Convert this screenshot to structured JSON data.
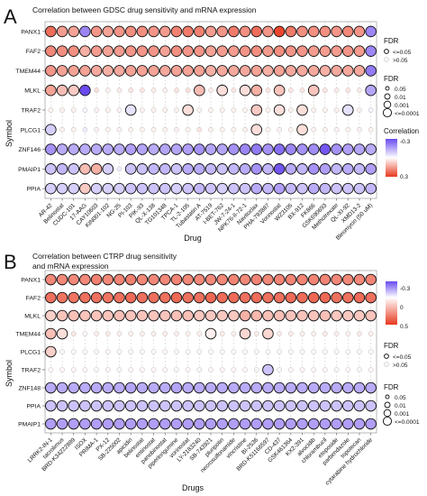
{
  "panels": [
    {
      "letter": "A",
      "title_lines": [
        "Correlation between GDSC drug sensitivity and mRNA expression"
      ]
    },
    {
      "letter": "B",
      "title_lines": [
        "Correlation between CTRP drug sensitivity",
        "and mRNA expression"
      ]
    }
  ],
  "chart_data": [
    {
      "type": "scatter",
      "title": "Correlation between GDSC drug sensitivity and mRNA expression",
      "xlabel": "Drug",
      "ylabel": "Symbol",
      "rows": [
        "PANX1",
        "FAF2",
        "TMEM44",
        "MLKL",
        "TRAF2",
        "PLCG1",
        "ZNF146",
        "PMAIP1",
        "PPIA"
      ],
      "x": [
        "AR-42",
        "Belinostat",
        "CUDC-101",
        "17-AAG",
        "CAY10603",
        "KIN001-102",
        "NG-25",
        "PI-103",
        "PIK-93",
        "QL-X-138",
        "TG101348",
        "TPCA-1",
        "TL-2-105",
        "Tubastatin A",
        "AT-7519",
        "I-BET-762",
        "JW-7-24-1",
        "NPK76-II-72-1",
        "Navitoclax",
        "PHA-793887",
        "Vorinostat",
        "WZ3105",
        "BX-912",
        "FK866",
        "GSK690693",
        "Methotrexate",
        "QL-XI-92",
        "XMD13-2",
        "Bleomycin (50 uM)"
      ],
      "z": [
        [
          0.22,
          0.15,
          0.14,
          -0.2,
          0.16,
          0.14,
          0.16,
          0.17,
          0.17,
          0.16,
          0.15,
          0.19,
          0.2,
          0.19,
          0.15,
          0.16,
          0.2,
          0.17,
          0.22,
          0.16,
          0.28,
          0.2,
          0.17,
          0.17,
          0.17,
          0.16,
          0.18,
          0.16,
          -0.2
        ],
        [
          0.18,
          0.17,
          0.17,
          0.12,
          0.15,
          0.14,
          0.15,
          0.16,
          0.16,
          0.16,
          0.14,
          0.17,
          0.16,
          0.16,
          0.14,
          0.15,
          0.15,
          0.16,
          0.17,
          0.15,
          0.17,
          0.16,
          0.16,
          0.15,
          0.15,
          0.15,
          0.16,
          0.15,
          -0.2
        ],
        [
          0.16,
          0.14,
          0.14,
          0.14,
          0.13,
          0.12,
          0.13,
          0.14,
          0.14,
          0.14,
          0.13,
          0.14,
          0.14,
          0.14,
          0.12,
          0.13,
          0.13,
          0.13,
          0.14,
          0.12,
          0.14,
          0.13,
          0.13,
          0.13,
          0.12,
          0.13,
          0.13,
          0.13,
          -0.22
        ],
        [
          0.14,
          0.1,
          0.08,
          -0.3,
          0.05,
          0.02,
          0.03,
          0.04,
          0.04,
          0.03,
          0.02,
          0.04,
          0.05,
          0.1,
          0.03,
          0.05,
          0.04,
          0.05,
          0.12,
          0.04,
          0.09,
          0.04,
          0.04,
          0.09,
          0.04,
          0.03,
          0.04,
          0.03,
          -0.15
        ],
        [
          0.02,
          0.02,
          0.02,
          -0.02,
          0.02,
          0.02,
          0.02,
          -0.05,
          0.02,
          0.02,
          0.02,
          0.02,
          0.05,
          0.02,
          0.02,
          0.02,
          0.02,
          0.02,
          0.08,
          0.02,
          0.05,
          0.02,
          0.05,
          0.02,
          0.02,
          0.02,
          -0.05,
          0.02,
          -0.02
        ],
        [
          -0.08,
          0.02,
          0.02,
          -0.03,
          0.02,
          0.02,
          0.02,
          0.02,
          0.02,
          0.02,
          0.02,
          0.02,
          0.02,
          0.04,
          0.02,
          0.02,
          0.02,
          0.02,
          0.05,
          0.02,
          0.02,
          0.02,
          0.05,
          0.02,
          0.02,
          0.02,
          0.02,
          0.02,
          0.02
        ],
        [
          -0.18,
          -0.14,
          -0.14,
          -0.14,
          -0.14,
          -0.14,
          -0.14,
          -0.16,
          -0.15,
          -0.14,
          -0.15,
          -0.15,
          -0.16,
          -0.18,
          -0.15,
          -0.15,
          -0.18,
          -0.2,
          -0.22,
          -0.18,
          -0.24,
          -0.2,
          -0.18,
          -0.19,
          -0.28,
          -0.18,
          -0.16,
          -0.15,
          -0.14
        ],
        [
          -0.1,
          -0.12,
          -0.1,
          0.1,
          0.12,
          -0.08,
          -0.03,
          -0.1,
          -0.1,
          -0.12,
          -0.12,
          -0.1,
          -0.14,
          -0.14,
          -0.12,
          -0.1,
          -0.12,
          -0.14,
          -0.18,
          -0.12,
          -0.28,
          -0.14,
          -0.12,
          -0.18,
          -0.16,
          -0.12,
          -0.14,
          -0.12,
          -0.16
        ],
        [
          -0.08,
          -0.08,
          -0.08,
          0.08,
          -0.08,
          -0.08,
          -0.08,
          -0.1,
          -0.1,
          -0.1,
          -0.1,
          -0.08,
          -0.1,
          -0.12,
          -0.1,
          -0.08,
          -0.1,
          -0.1,
          -0.14,
          -0.12,
          -0.16,
          -0.12,
          -0.1,
          -0.14,
          -0.12,
          -0.1,
          -0.1,
          -0.1,
          -0.12
        ]
      ],
      "fdr_sig": [
        [
          1,
          1,
          1,
          1,
          1,
          1,
          1,
          1,
          1,
          1,
          1,
          1,
          1,
          1,
          1,
          1,
          1,
          1,
          1,
          1,
          1,
          1,
          1,
          1,
          1,
          1,
          1,
          1,
          1
        ],
        [
          1,
          1,
          1,
          1,
          1,
          1,
          1,
          1,
          1,
          1,
          1,
          1,
          1,
          1,
          1,
          1,
          1,
          1,
          1,
          1,
          1,
          1,
          1,
          1,
          1,
          1,
          1,
          1,
          1
        ],
        [
          1,
          1,
          1,
          1,
          1,
          1,
          1,
          1,
          1,
          1,
          1,
          1,
          1,
          1,
          1,
          1,
          1,
          1,
          1,
          1,
          1,
          1,
          1,
          1,
          1,
          1,
          1,
          1,
          1
        ],
        [
          1,
          1,
          1,
          1,
          0,
          0,
          0,
          0,
          0,
          0,
          0,
          0,
          0,
          1,
          0,
          1,
          0,
          1,
          1,
          0,
          1,
          0,
          0,
          1,
          0,
          0,
          0,
          0,
          1
        ],
        [
          0,
          0,
          0,
          0,
          0,
          0,
          0,
          1,
          0,
          0,
          0,
          0,
          1,
          0,
          0,
          0,
          0,
          0,
          1,
          0,
          1,
          0,
          1,
          0,
          0,
          0,
          1,
          0,
          0
        ],
        [
          1,
          0,
          0,
          0,
          0,
          0,
          0,
          0,
          0,
          0,
          0,
          0,
          0,
          0,
          0,
          0,
          0,
          0,
          1,
          0,
          0,
          0,
          1,
          0,
          0,
          0,
          0,
          0,
          0
        ],
        [
          1,
          1,
          1,
          1,
          1,
          1,
          1,
          1,
          1,
          1,
          1,
          1,
          1,
          1,
          1,
          1,
          1,
          1,
          1,
          1,
          1,
          1,
          1,
          1,
          1,
          1,
          1,
          1,
          1
        ],
        [
          1,
          1,
          1,
          1,
          1,
          1,
          0,
          1,
          1,
          1,
          1,
          1,
          1,
          1,
          1,
          1,
          1,
          1,
          1,
          1,
          1,
          1,
          1,
          1,
          1,
          1,
          1,
          1,
          1
        ],
        [
          1,
          1,
          1,
          1,
          1,
          1,
          1,
          1,
          1,
          1,
          1,
          1,
          1,
          1,
          1,
          1,
          1,
          1,
          1,
          1,
          1,
          1,
          1,
          1,
          1,
          1,
          1,
          1,
          1
        ]
      ],
      "color_scale": {
        "title": "Correlation",
        "ticks": [
          -0.3,
          0.3
        ],
        "low": "#6a4af0",
        "mid": "#ffffff",
        "high": "#e8391f"
      },
      "fdr_legend": {
        "title": "FDR",
        "items": [
          "<=0.05",
          ">0.05"
        ]
      },
      "size_legend": {
        "title": "FDR",
        "items": [
          "0.05",
          "0.01",
          "0.001",
          "<=0.0001"
        ]
      }
    },
    {
      "type": "scatter",
      "title": "Correlation between CTRP drug sensitivity and mRNA expression",
      "xlabel": "Drugs",
      "ylabel": "Symbol",
      "rows": [
        "PANX1",
        "FAF2",
        "MLKL",
        "TMEM44",
        "PLCG1",
        "TRAF2",
        "ZNF148",
        "PPIA",
        "PMAIP1"
      ],
      "x": [
        "LRRK2-IN-1",
        "tacrolimus",
        "BRD-K34222889",
        "ISOX",
        "PRIMA-1",
        "PX-12",
        "SB-225002",
        "apicidin",
        "belinostat",
        "entinostat",
        "panobinostat",
        "piperlongumine",
        "vorinostat",
        "LY-2183240",
        "SB-743921",
        "pluripotin",
        "necrosulfonamide",
        "vincristine",
        "BI-2536",
        "BRD-K51166597",
        "CD-437",
        "GSK461364",
        "KX2-391",
        "alvocidib",
        "chlorambucil",
        "etoposide",
        "parbendazole",
        "topotecan",
        "cytarabine hydrochloride"
      ],
      "z": [
        [
          0.3,
          0.3,
          0.3,
          0.3,
          0.32,
          0.3,
          0.31,
          0.32,
          0.3,
          0.3,
          0.3,
          0.31,
          0.3,
          0.3,
          0.3,
          0.3,
          0.31,
          0.3,
          0.31,
          0.3,
          0.31,
          0.31,
          0.31,
          0.31,
          0.31,
          0.3,
          0.3,
          0.3,
          0.31
        ],
        [
          0.36,
          0.35,
          0.35,
          0.36,
          0.36,
          0.35,
          0.36,
          0.37,
          0.36,
          0.36,
          0.36,
          0.38,
          0.36,
          0.36,
          0.38,
          0.37,
          0.37,
          0.36,
          0.37,
          0.36,
          0.36,
          0.37,
          0.37,
          0.38,
          0.38,
          0.36,
          0.36,
          0.37,
          0.36
        ],
        [
          0.12,
          0.15,
          0.16,
          0.15,
          0.15,
          0.15,
          0.16,
          0.15,
          0.15,
          0.15,
          0.15,
          0.16,
          0.16,
          0.14,
          0.14,
          0.14,
          0.14,
          0.2,
          0.18,
          0.16,
          0.16,
          0.15,
          0.15,
          0.15,
          0.16,
          0.14,
          0.14,
          0.14,
          0.15
        ],
        [
          0.16,
          0.08,
          0.06,
          0.02,
          0.04,
          0.05,
          0.04,
          0.04,
          0.04,
          0.04,
          0.04,
          0.04,
          0.04,
          0.04,
          0.04,
          0.05,
          0.04,
          0.1,
          0.05,
          0.1,
          0.05,
          0.05,
          0.04,
          0.04,
          0.05,
          0.04,
          0.04,
          0.05,
          0.04
        ],
        [
          0.12,
          0.02,
          0.02,
          0.02,
          0.02,
          0.02,
          0.02,
          0.02,
          0.02,
          0.02,
          0.02,
          0.02,
          0.02,
          0.02,
          0.02,
          0.02,
          0.02,
          0.02,
          0.02,
          0.02,
          0.02,
          0.02,
          0.02,
          0.02,
          0.02,
          0.02,
          0.02,
          0.02,
          0.02
        ],
        [
          0.02,
          0.02,
          0.02,
          0.02,
          0.02,
          0.02,
          0.02,
          0.02,
          0.02,
          0.02,
          0.02,
          0.02,
          0.02,
          0.02,
          0.02,
          0.02,
          0.02,
          0.02,
          0.02,
          -0.1,
          0.02,
          0.02,
          0.02,
          0.02,
          0.02,
          0.02,
          0.02,
          0.02,
          0.02
        ],
        [
          -0.14,
          -0.14,
          -0.14,
          -0.14,
          -0.14,
          -0.14,
          -0.14,
          -0.15,
          -0.14,
          -0.14,
          -0.14,
          -0.15,
          -0.14,
          -0.14,
          -0.14,
          -0.14,
          -0.14,
          -0.14,
          -0.14,
          -0.14,
          -0.14,
          -0.14,
          -0.14,
          -0.14,
          -0.14,
          -0.14,
          -0.14,
          -0.14,
          -0.14
        ],
        [
          -0.1,
          -0.1,
          -0.1,
          -0.1,
          -0.1,
          -0.1,
          -0.1,
          -0.1,
          -0.1,
          -0.1,
          -0.1,
          -0.1,
          -0.1,
          -0.1,
          -0.1,
          -0.1,
          -0.1,
          -0.1,
          -0.1,
          -0.1,
          -0.1,
          -0.1,
          -0.1,
          -0.1,
          -0.1,
          -0.1,
          -0.1,
          -0.1,
          -0.1
        ],
        [
          -0.16,
          -0.16,
          -0.16,
          -0.16,
          -0.16,
          -0.16,
          -0.16,
          -0.16,
          -0.16,
          -0.16,
          -0.16,
          -0.16,
          -0.16,
          -0.16,
          -0.16,
          -0.16,
          -0.16,
          -0.16,
          -0.16,
          -0.16,
          -0.16,
          -0.16,
          -0.16,
          -0.16,
          -0.16,
          -0.16,
          -0.16,
          -0.16,
          -0.16
        ]
      ],
      "fdr_sig": [
        [
          1,
          1,
          1,
          1,
          1,
          1,
          1,
          1,
          1,
          1,
          1,
          1,
          1,
          1,
          1,
          1,
          1,
          1,
          1,
          1,
          1,
          1,
          1,
          1,
          1,
          1,
          1,
          1,
          1
        ],
        [
          1,
          1,
          1,
          1,
          1,
          1,
          1,
          1,
          1,
          1,
          1,
          1,
          1,
          1,
          1,
          1,
          1,
          1,
          1,
          1,
          1,
          1,
          1,
          1,
          1,
          1,
          1,
          1,
          1
        ],
        [
          1,
          1,
          1,
          1,
          1,
          1,
          1,
          1,
          1,
          1,
          1,
          1,
          1,
          1,
          1,
          1,
          1,
          1,
          1,
          1,
          1,
          1,
          1,
          1,
          1,
          1,
          1,
          1,
          1
        ],
        [
          1,
          1,
          0,
          0,
          0,
          0,
          0,
          0,
          0,
          0,
          0,
          0,
          0,
          0,
          1,
          0,
          0,
          1,
          0,
          1,
          0,
          0,
          0,
          0,
          0,
          0,
          0,
          0,
          0
        ],
        [
          1,
          0,
          0,
          0,
          0,
          0,
          0,
          0,
          0,
          0,
          0,
          0,
          0,
          0,
          0,
          0,
          0,
          0,
          0,
          0,
          0,
          0,
          0,
          0,
          0,
          0,
          0,
          0,
          0
        ],
        [
          0,
          0,
          0,
          0,
          0,
          0,
          0,
          0,
          0,
          0,
          0,
          0,
          0,
          0,
          0,
          0,
          0,
          0,
          0,
          1,
          0,
          0,
          0,
          0,
          0,
          0,
          0,
          0,
          0
        ],
        [
          1,
          1,
          1,
          1,
          1,
          1,
          1,
          1,
          1,
          1,
          1,
          1,
          1,
          1,
          1,
          1,
          1,
          1,
          1,
          1,
          1,
          1,
          1,
          1,
          1,
          1,
          1,
          1,
          1
        ],
        [
          1,
          1,
          1,
          1,
          1,
          1,
          1,
          1,
          1,
          1,
          1,
          1,
          1,
          1,
          1,
          1,
          1,
          1,
          1,
          1,
          1,
          1,
          1,
          1,
          1,
          1,
          1,
          1,
          1
        ],
        [
          1,
          1,
          1,
          1,
          1,
          1,
          1,
          1,
          1,
          1,
          1,
          1,
          1,
          1,
          1,
          1,
          1,
          1,
          1,
          1,
          1,
          1,
          1,
          1,
          1,
          1,
          1,
          1,
          1
        ]
      ],
      "color_scale": {
        "title": "",
        "ticks": [
          -0.3,
          0.0,
          0.5
        ],
        "low": "#6a4af0",
        "mid": "#ffffff",
        "high": "#e8391f"
      },
      "fdr_legend": {
        "title": "FDR",
        "items": [
          "<=0.05",
          ">0.05"
        ]
      },
      "size_legend": {
        "title": "FDR",
        "items": [
          "0.05",
          "0.01",
          "0.001",
          "<=0.0001"
        ]
      }
    }
  ]
}
